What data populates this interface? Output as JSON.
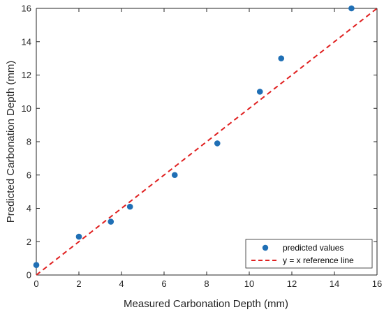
{
  "chart_data": {
    "type": "scatter",
    "title": "",
    "xlabel": "Measured Carbonation Depth (mm)",
    "ylabel": "Predicted Carbonation Depth (mm)",
    "xlim": [
      0,
      16
    ],
    "ylim": [
      0,
      16
    ],
    "xticks": [
      0,
      2,
      4,
      6,
      8,
      10,
      12,
      14,
      16
    ],
    "yticks": [
      0,
      2,
      4,
      6,
      8,
      10,
      12,
      14,
      16
    ],
    "grid": false,
    "legend_position": "bottom-right",
    "series": [
      {
        "name": "predicted values",
        "type": "scatter",
        "color": "#1f6fb5",
        "x": [
          0.0,
          2.0,
          3.5,
          4.4,
          6.5,
          8.5,
          10.5,
          11.5,
          14.8
        ],
        "y": [
          0.6,
          2.3,
          3.2,
          4.1,
          6.0,
          7.9,
          11.0,
          13.0,
          16.0
        ]
      },
      {
        "name": "y = x reference line",
        "type": "line",
        "style": "dashed",
        "color": "#e02020",
        "x": [
          0,
          16
        ],
        "y": [
          0,
          16
        ]
      }
    ]
  }
}
